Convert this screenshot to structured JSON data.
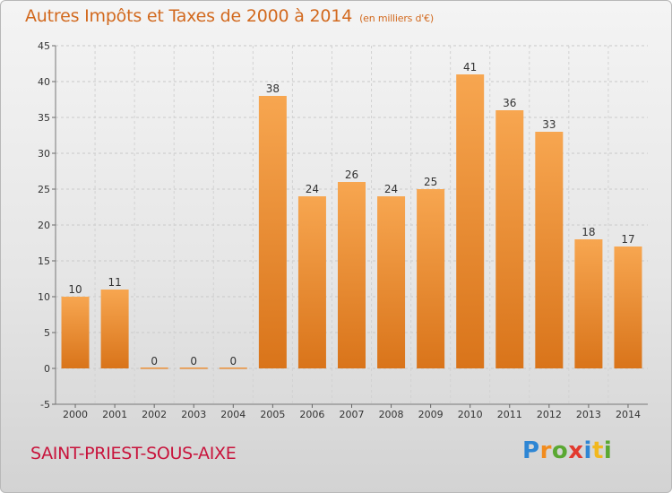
{
  "header": {
    "title": "Autres Impôts et Taxes de 2000 à 2014",
    "unit": "(en milliers d'€)"
  },
  "footer": {
    "town": "SAINT-PRIEST-SOUS-AIXE",
    "logo": [
      "P",
      "r",
      "o",
      "x",
      "i",
      "t",
      "i"
    ]
  },
  "colors": {
    "bar_top": "#f7a650",
    "bar_bottom": "#d9741a",
    "title": "#d2691e",
    "town": "#c8143c"
  },
  "chart_data": {
    "type": "bar",
    "title": "Autres Impôts et Taxes de 2000 à 2014",
    "subtitle": "(en milliers d'€)",
    "categories": [
      "2000",
      "2001",
      "2002",
      "2003",
      "2004",
      "2005",
      "2006",
      "2007",
      "2008",
      "2009",
      "2010",
      "2011",
      "2012",
      "2013",
      "2014"
    ],
    "values": [
      10,
      11,
      0,
      0,
      0,
      38,
      24,
      26,
      24,
      25,
      41,
      36,
      33,
      18,
      17
    ],
    "ylim": [
      -5,
      45
    ],
    "yticks": [
      -5,
      0,
      5,
      10,
      15,
      20,
      25,
      30,
      35,
      40,
      45
    ],
    "grid": true
  }
}
